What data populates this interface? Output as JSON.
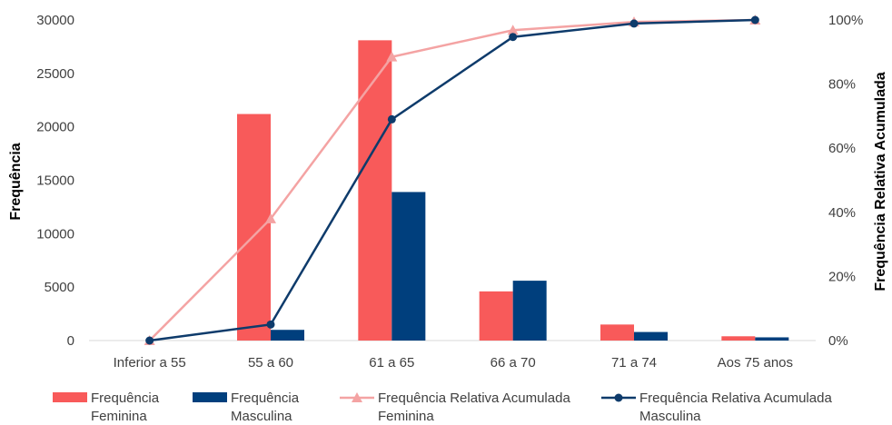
{
  "chart_data": {
    "type": "bar",
    "title": "",
    "ylabel": "Frequência",
    "y2label": "Frequência Relativa Acumulada",
    "categories": [
      "Inferior a 55",
      "55 a 60",
      "61 a 65",
      "66 a 70",
      "71 a 74",
      "Aos 75 anos"
    ],
    "ylim": [
      0,
      30000
    ],
    "yticks": [
      "0",
      "5000",
      "10000",
      "15000",
      "20000",
      "25000",
      "30000"
    ],
    "y2lim": [
      0,
      100
    ],
    "y2ticks": [
      "0%",
      "20%",
      "40%",
      "60%",
      "80%",
      "100%"
    ],
    "grid": false,
    "legend_position": "bottom",
    "series": [
      {
        "name_lines": [
          "Frequência",
          "Feminina"
        ],
        "kind": "bar",
        "axis": "left",
        "color": "#F85A5A",
        "values": [
          0,
          21200,
          28100,
          4600,
          1500,
          400
        ]
      },
      {
        "name_lines": [
          "Frequência",
          "Masculina"
        ],
        "kind": "bar",
        "axis": "left",
        "color": "#003F7D",
        "values": [
          0,
          1000,
          13900,
          5600,
          800,
          300
        ]
      },
      {
        "name_lines": [
          "Frequência Relativa Acumulada",
          "Feminina"
        ],
        "kind": "line",
        "marker": "triangle",
        "axis": "right",
        "color": "#F4A3A3",
        "values": [
          0,
          38,
          88.5,
          96.8,
          99.4,
          100
        ]
      },
      {
        "name_lines": [
          "Frequência Relativa Acumulada",
          "Masculina"
        ],
        "kind": "line",
        "marker": "circle",
        "axis": "right",
        "color": "#0E3B6B",
        "values": [
          0,
          5,
          69,
          94.7,
          98.9,
          100
        ]
      }
    ]
  }
}
